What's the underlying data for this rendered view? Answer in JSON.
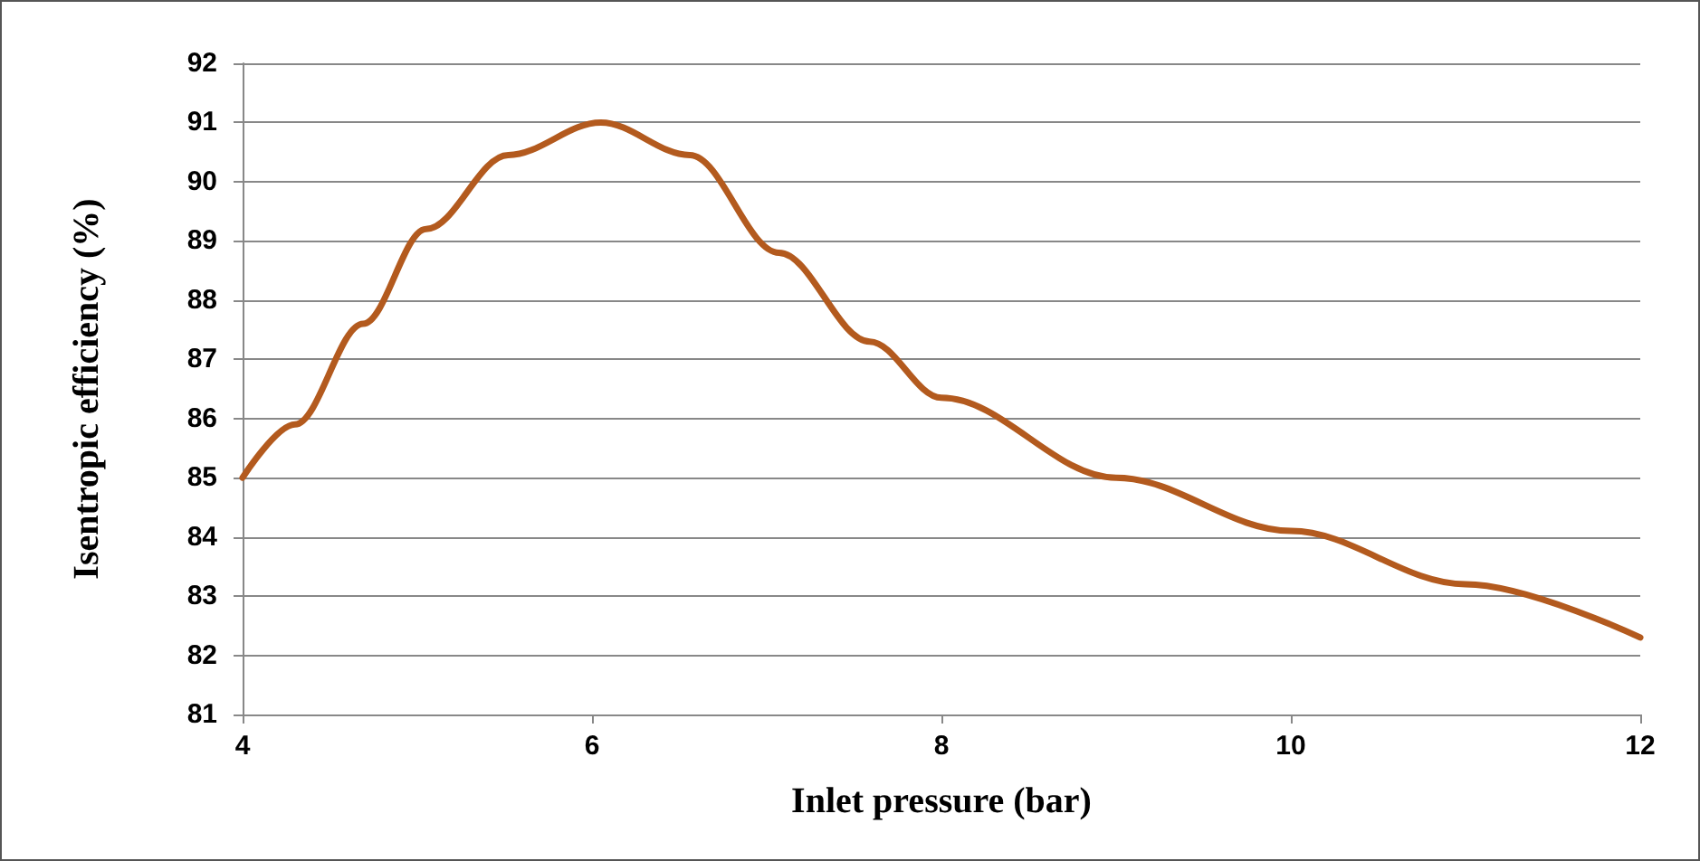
{
  "chart_data": {
    "type": "line",
    "xlabel": "Inlet pressure (bar)",
    "ylabel": "Isentropic efficiency (%)",
    "x": [
      4,
      4.3,
      4.69,
      5.05,
      5.52,
      6.05,
      6.56,
      7.07,
      7.59,
      8,
      9,
      10,
      11,
      12
    ],
    "series": [
      {
        "color": "#b35a1e",
        "values": [
          85,
          85.9,
          87.6,
          89.2,
          90.45,
          91,
          90.45,
          88.8,
          87.3,
          86.35,
          85.0,
          84.1,
          83.2,
          82.3
        ]
      }
    ],
    "xlim": [
      4,
      12
    ],
    "xticks": [
      4,
      6,
      8,
      10,
      12
    ],
    "ylim": [
      81,
      92
    ],
    "yticks": [
      81,
      82,
      83,
      84,
      85,
      86,
      87,
      88,
      89,
      90,
      91,
      92
    ],
    "grid": "y",
    "marker": "none",
    "line_style": "solid"
  }
}
